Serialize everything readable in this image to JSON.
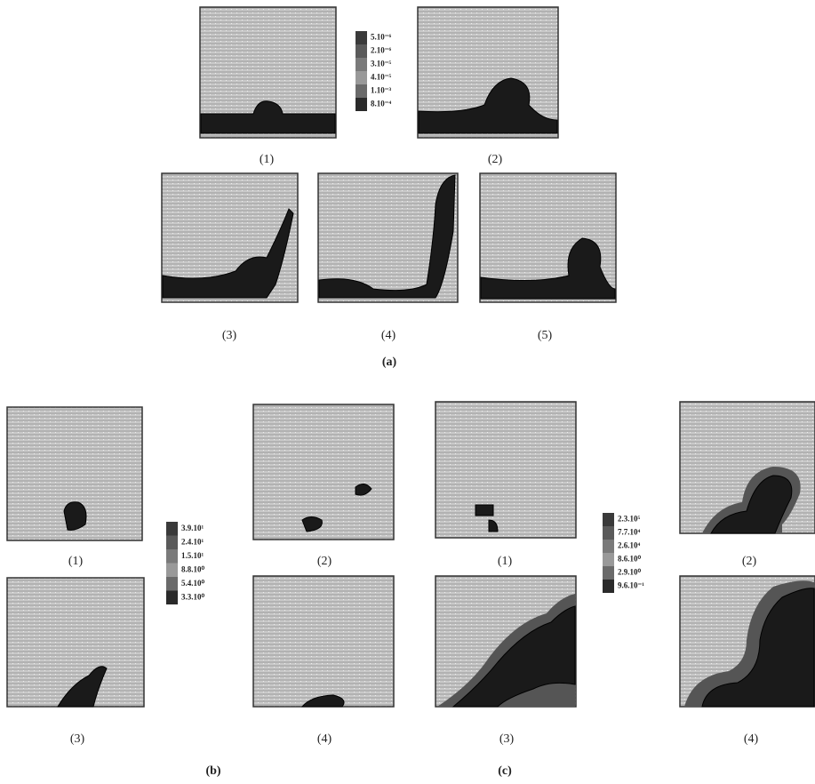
{
  "figure": {
    "a": {
      "caption": "(a)",
      "panels": [
        "(1)",
        "(2)",
        "(3)",
        "(4)",
        "(5)"
      ],
      "legend": [
        "5.10⁻⁶",
        "2.10⁻⁶",
        "3.10⁻⁵",
        "4.10⁻⁵",
        "1.10⁻³",
        "8.10⁻⁴"
      ]
    },
    "b": {
      "caption": "(b)",
      "panels": [
        "(1)",
        "(2)",
        "(3)",
        "(4)"
      ],
      "legend": [
        "3.9.10¹",
        "2.4.10¹",
        "1.5.10¹",
        "8.8.10⁰",
        "5.4.10⁰",
        "3.3.10⁰"
      ]
    },
    "c": {
      "caption": "(c)",
      "panels": [
        "(1)",
        "(2)",
        "(3)",
        "(4)"
      ],
      "legend": [
        "2.3.10⁵",
        "7.7.10⁴",
        "2.6.10⁴",
        "8.6.10⁰",
        "2.9.10⁰",
        "9.6.10⁻¹"
      ]
    }
  }
}
